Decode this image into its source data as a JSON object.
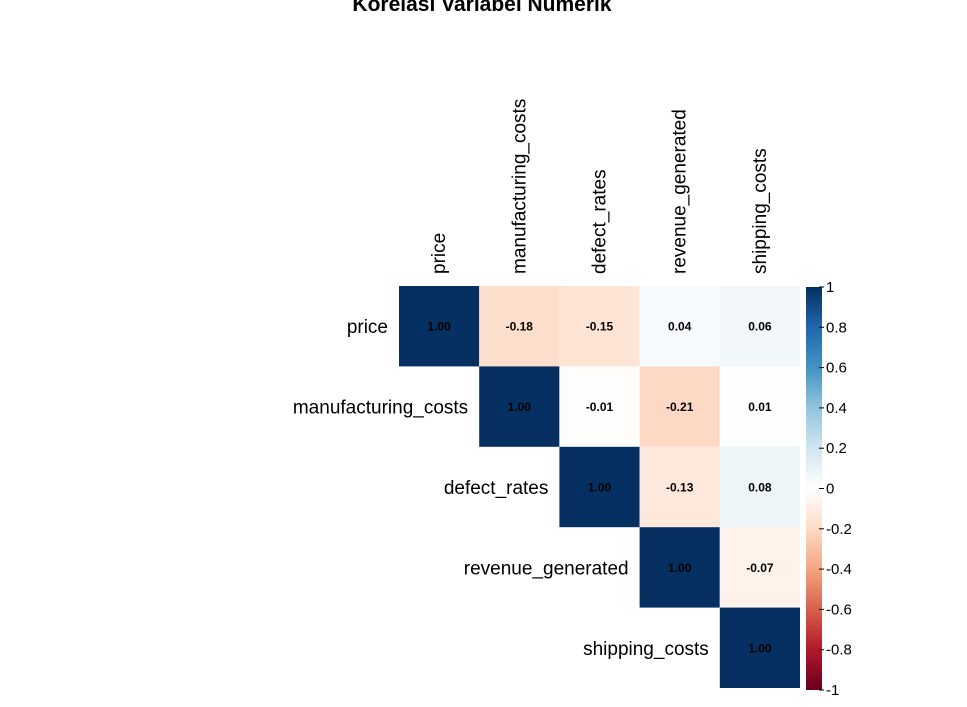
{
  "chart_data": {
    "type": "heatmap",
    "title": "Korelasi Variabel Numerik",
    "variables": [
      "price",
      "manufacturing_costs",
      "defect_rates",
      "revenue_generated",
      "shipping_costs"
    ],
    "matrix_shape": "upper-triangular",
    "cells": [
      {
        "row": "price",
        "col": "price",
        "value": 1.0,
        "label": "1.00"
      },
      {
        "row": "price",
        "col": "manufacturing_costs",
        "value": -0.18,
        "label": "-0.18"
      },
      {
        "row": "price",
        "col": "defect_rates",
        "value": -0.15,
        "label": "-0.15"
      },
      {
        "row": "price",
        "col": "revenue_generated",
        "value": 0.04,
        "label": "0.04"
      },
      {
        "row": "price",
        "col": "shipping_costs",
        "value": 0.06,
        "label": "0.06"
      },
      {
        "row": "manufacturing_costs",
        "col": "manufacturing_costs",
        "value": 1.0,
        "label": "1.00"
      },
      {
        "row": "manufacturing_costs",
        "col": "defect_rates",
        "value": -0.01,
        "label": "-0.01"
      },
      {
        "row": "manufacturing_costs",
        "col": "revenue_generated",
        "value": -0.21,
        "label": "-0.21"
      },
      {
        "row": "manufacturing_costs",
        "col": "shipping_costs",
        "value": 0.01,
        "label": "0.01"
      },
      {
        "row": "defect_rates",
        "col": "defect_rates",
        "value": 1.0,
        "label": "1.00"
      },
      {
        "row": "defect_rates",
        "col": "revenue_generated",
        "value": -0.13,
        "label": "-0.13"
      },
      {
        "row": "defect_rates",
        "col": "shipping_costs",
        "value": 0.08,
        "label": "0.08"
      },
      {
        "row": "revenue_generated",
        "col": "revenue_generated",
        "value": 1.0,
        "label": "1.00"
      },
      {
        "row": "revenue_generated",
        "col": "shipping_costs",
        "value": -0.07,
        "label": "-0.07"
      },
      {
        "row": "shipping_costs",
        "col": "shipping_costs",
        "value": 1.0,
        "label": "1.00"
      }
    ],
    "colorbar": {
      "range": [
        -1,
        1
      ],
      "ticks": [
        {
          "value": 1,
          "label": "1"
        },
        {
          "value": 0.8,
          "label": "0.8"
        },
        {
          "value": 0.6,
          "label": "0.6"
        },
        {
          "value": 0.4,
          "label": "0.4"
        },
        {
          "value": 0.2,
          "label": "0.2"
        },
        {
          "value": 0,
          "label": "0"
        },
        {
          "value": -0.2,
          "label": "-0.2"
        },
        {
          "value": -0.4,
          "label": "-0.4"
        },
        {
          "value": -0.6,
          "label": "-0.6"
        },
        {
          "value": -0.8,
          "label": "-0.8"
        },
        {
          "value": -1,
          "label": "-1"
        }
      ],
      "colors": [
        "#67001F",
        "#B2182B",
        "#D6604D",
        "#F4A582",
        "#FDDBC7",
        "#FFFFFF",
        "#D1E5F0",
        "#92C5DE",
        "#4393C3",
        "#2166AC",
        "#053061"
      ]
    }
  }
}
